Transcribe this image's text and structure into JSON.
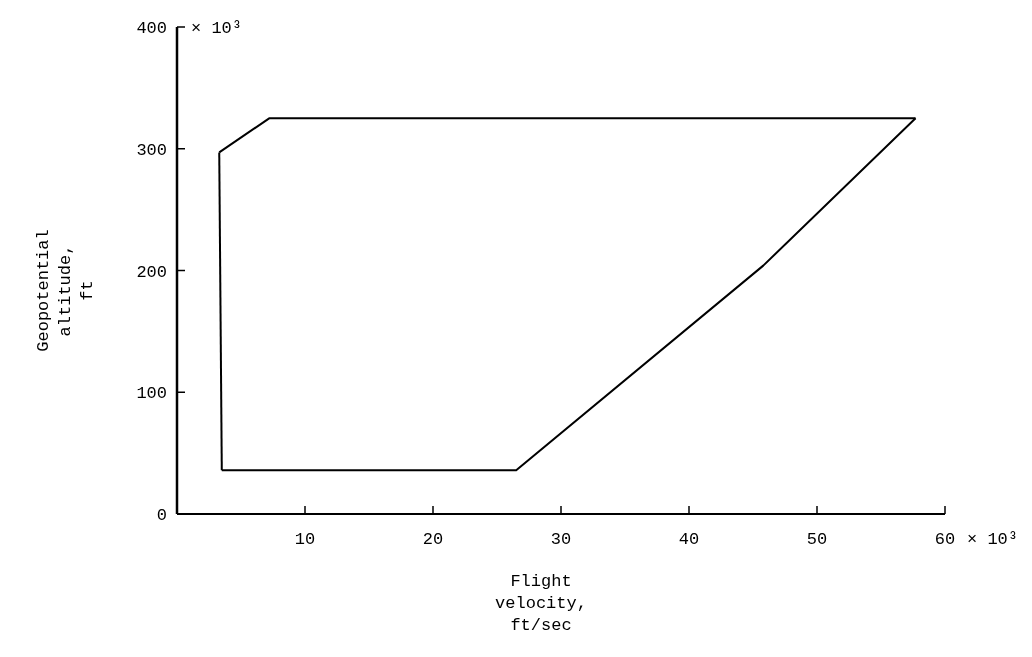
{
  "chart_data": {
    "type": "line",
    "xlabel": "Flight\nvelocity,\nft/sec",
    "ylabel": "Geopotential\naltitude,\nft",
    "series": [
      {
        "color": "#000000",
        "x": [
          3.3,
          7.2,
          57.7
        ],
        "values": [
          297,
          325,
          325
        ]
      },
      {
        "color": "#000000",
        "x": [
          3.5,
          26.5,
          45.8,
          57.7
        ],
        "values": [
          36,
          36,
          204,
          325
        ]
      },
      {
        "color": "#000000",
        "x": [
          3.3,
          3.5
        ],
        "values": [
          297,
          36
        ]
      }
    ],
    "xlim": [
      0,
      60
    ],
    "ylim": [
      0,
      400
    ],
    "xticks": [
      10,
      20,
      30,
      40,
      50,
      60
    ],
    "yticks": [
      0,
      100,
      200,
      300,
      400
    ],
    "annotations": [
      "× 10³",
      "× 10³"
    ],
    "grid": false,
    "marker": "none",
    "line_style": "solid"
  }
}
